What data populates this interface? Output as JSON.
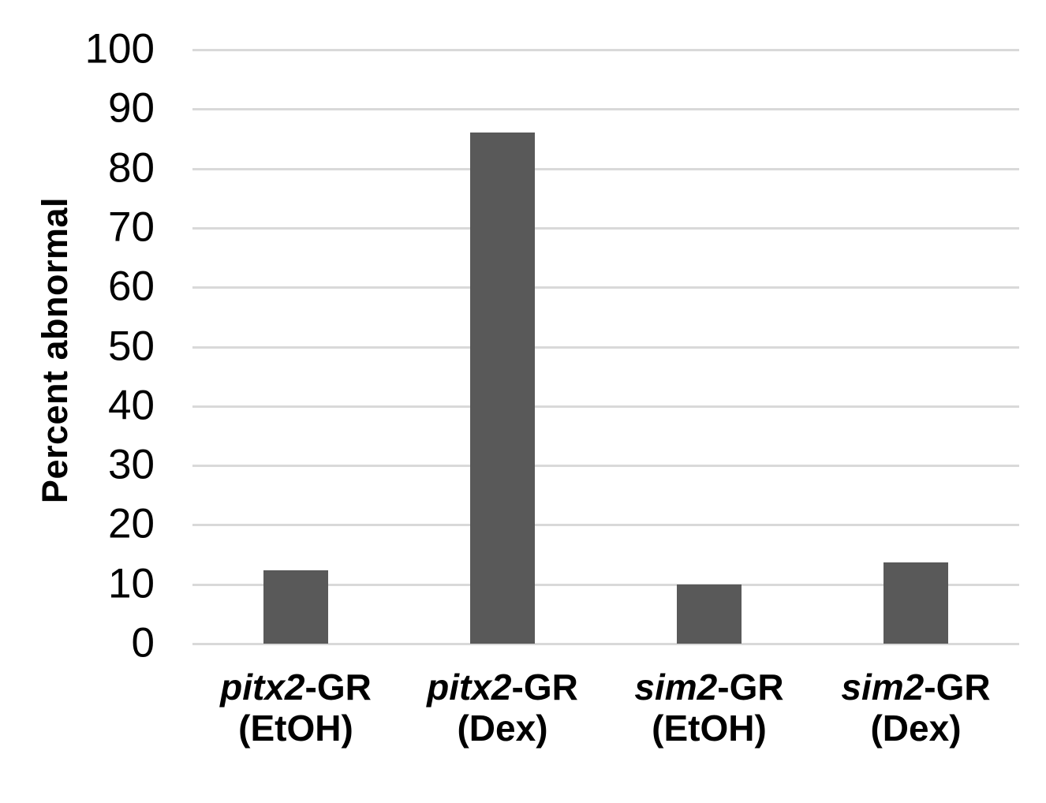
{
  "chart_data": {
    "type": "bar",
    "title": "",
    "xlabel": "",
    "ylabel": "Percent abnormal",
    "ylim": [
      0,
      100
    ],
    "yticks": [
      0,
      10,
      20,
      30,
      40,
      50,
      60,
      70,
      80,
      90,
      100
    ],
    "grid": "horizontal gridlines on, no vertical axis line",
    "legend": "none",
    "bar_color": "#595959",
    "gridline_color": "#d9d9d9",
    "text_color": "#000000",
    "categories": [
      {
        "gene": "pitx2",
        "suffix": "-GR",
        "treatment": "(EtOH)",
        "label": "pitx2-GR (EtOH)"
      },
      {
        "gene": "pitx2",
        "suffix": "-GR",
        "treatment": "(Dex)",
        "label": "pitx2-GR (Dex)"
      },
      {
        "gene": "sim2",
        "suffix": "-GR",
        "treatment": "(EtOH)",
        "label": "sim2-GR (EtOH)"
      },
      {
        "gene": "sim2",
        "suffix": "-GR",
        "treatment": "(Dex)",
        "label": "sim2-GR (Dex)"
      }
    ],
    "values": [
      12.4,
      86,
      9.9,
      13.7
    ]
  }
}
